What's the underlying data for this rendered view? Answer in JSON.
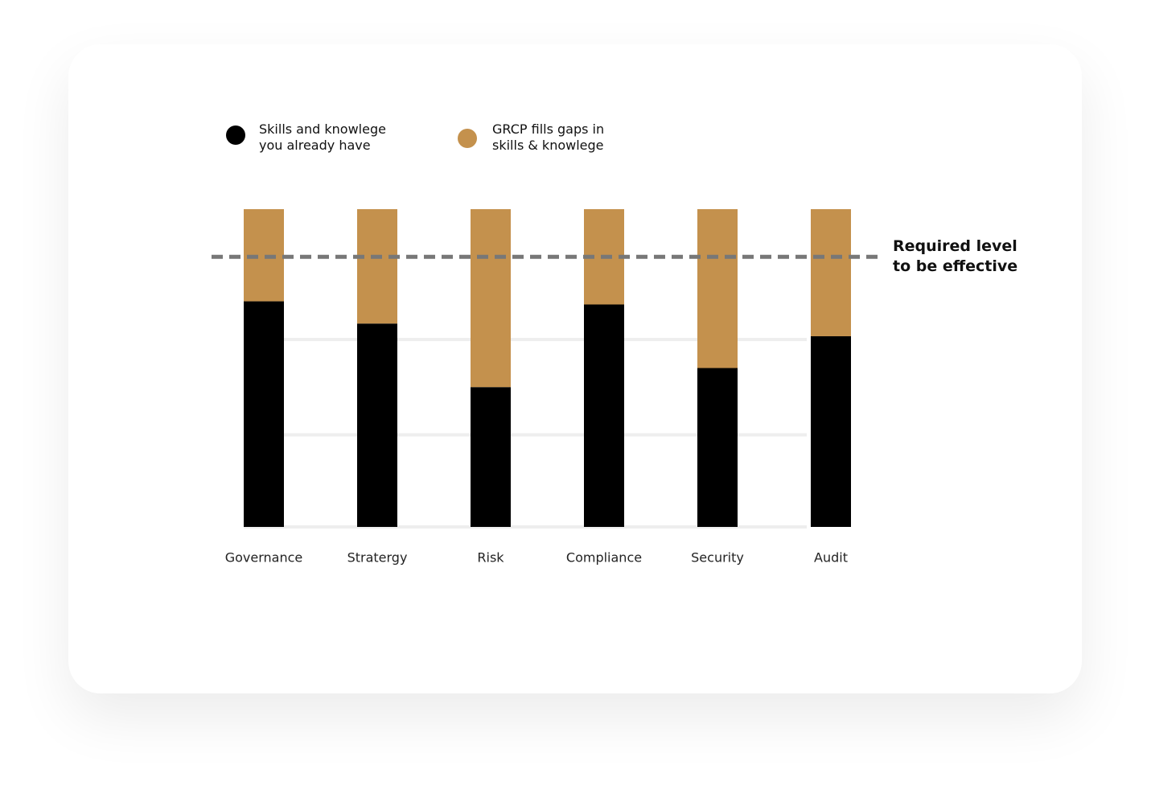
{
  "chart_data": {
    "type": "stacked-bar",
    "categories": [
      "Governance",
      "Stratergy",
      "Risk",
      "Compliance",
      "Security",
      "Audit"
    ],
    "series": [
      {
        "name": "Skills and knowlege you already have",
        "color": "#000000",
        "values": [
          71,
          64,
          44,
          70,
          50,
          60
        ]
      },
      {
        "name": "GRCP fills gaps in skills & knowlege",
        "color": "#c4914d",
        "values": [
          29,
          36,
          56,
          30,
          50,
          40
        ]
      }
    ],
    "ylim": [
      0,
      100
    ],
    "yticks": [
      0,
      29,
      59
    ],
    "grid": true,
    "reference_line": {
      "value": 85,
      "label": "Required level to be effective",
      "color": "#777777"
    }
  }
}
